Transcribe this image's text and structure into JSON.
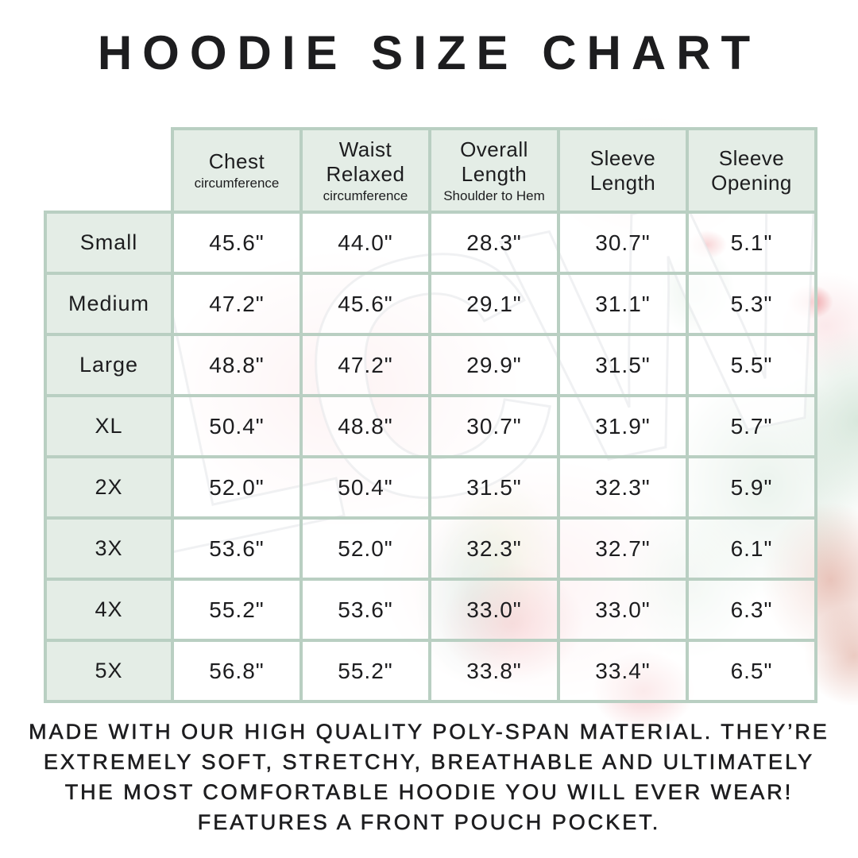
{
  "title": "HOODIE SIZE CHART",
  "watermark": {
    "text": "LCW"
  },
  "colors": {
    "text": "#1d1d1f",
    "accent_mint": "#e4ede6",
    "grid_line": "#b9cfc2",
    "watermark_pink": "#f8d7da",
    "watermark_sage": "#cfe2d4",
    "watermark_teal": "#a8d0c4",
    "watermark_olive": "#dddfb0",
    "watermark_red": "#e8797e",
    "watermark_terracotta": "#cd7b66"
  },
  "chart_data": {
    "type": "table",
    "title": "HOODIE SIZE CHART",
    "columns": [
      {
        "title_lines": [
          "Chest"
        ],
        "subtitle": "circumference"
      },
      {
        "title_lines": [
          "Waist",
          "Relaxed"
        ],
        "subtitle": "circumference"
      },
      {
        "title_lines": [
          "Overall",
          "Length"
        ],
        "subtitle": "Shoulder to Hem"
      },
      {
        "title_lines": [
          "Sleeve",
          "Length"
        ],
        "subtitle": ""
      },
      {
        "title_lines": [
          "Sleeve",
          "Opening"
        ],
        "subtitle": ""
      }
    ],
    "rows": [
      {
        "label": "Small",
        "values": [
          "45.6\"",
          "44.0\"",
          "28.3\"",
          "30.7\"",
          "5.1\""
        ]
      },
      {
        "label": "Medium",
        "values": [
          "47.2\"",
          "45.6\"",
          "29.1\"",
          "31.1\"",
          "5.3\""
        ]
      },
      {
        "label": "Large",
        "values": [
          "48.8\"",
          "47.2\"",
          "29.9\"",
          "31.5\"",
          "5.5\""
        ]
      },
      {
        "label": "XL",
        "values": [
          "50.4\"",
          "48.8\"",
          "30.7\"",
          "31.9\"",
          "5.7\""
        ]
      },
      {
        "label": "2X",
        "values": [
          "52.0\"",
          "50.4\"",
          "31.5\"",
          "32.3\"",
          "5.9\""
        ]
      },
      {
        "label": "3X",
        "values": [
          "53.6\"",
          "52.0\"",
          "32.3\"",
          "32.7\"",
          "6.1\""
        ]
      },
      {
        "label": "4X",
        "values": [
          "55.2\"",
          "53.6\"",
          "33.0\"",
          "33.0\"",
          "6.3\""
        ]
      },
      {
        "label": "5X",
        "values": [
          "56.8\"",
          "55.2\"",
          "33.8\"",
          "33.4\"",
          "6.5\""
        ]
      }
    ]
  },
  "footer_lines": [
    "MADE WITH OUR HIGH QUALITY POLY-SPAN MATERIAL. THEY’RE",
    "EXTREMELY SOFT, STRETCHY, BREATHABLE AND ULTIMATELY",
    "THE MOST COMFORTABLE HOODIE YOU WILL EVER WEAR!",
    "FEATURES A FRONT POUCH POCKET."
  ]
}
